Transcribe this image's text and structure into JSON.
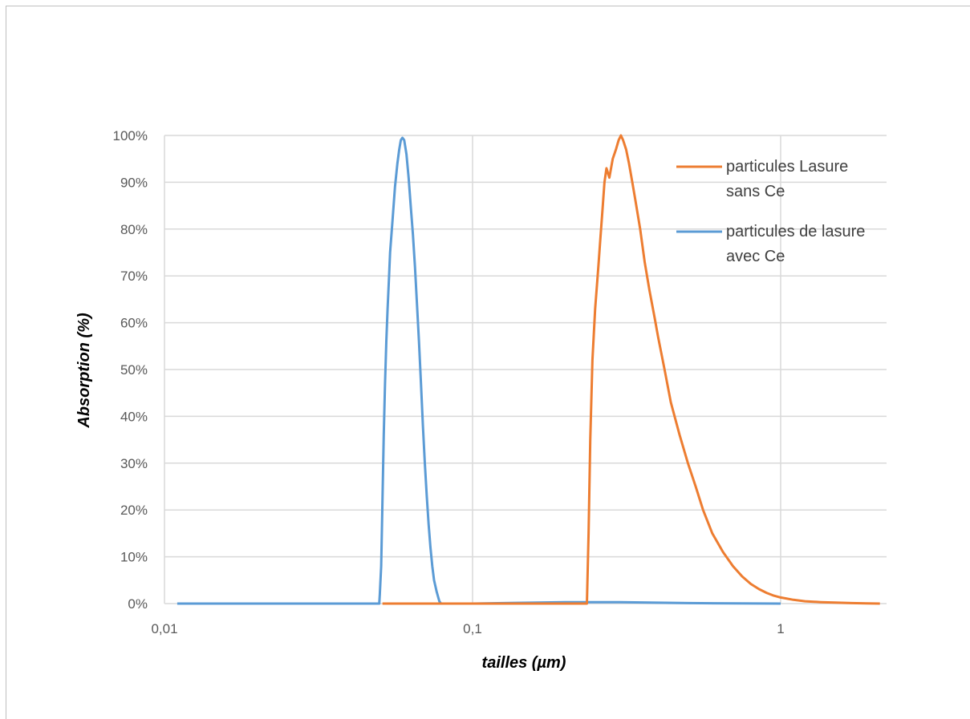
{
  "chart_data": {
    "type": "line",
    "title": "",
    "xlabel": "tailles (µm)",
    "ylabel": "Absorption (%)",
    "x_scale": "log",
    "xlim": [
      0.01,
      2.3
    ],
    "ylim": [
      0,
      100
    ],
    "grid": true,
    "legend_position": "top-right",
    "x_ticks": [
      {
        "value": 0.01,
        "label": "0,01"
      },
      {
        "value": 0.1,
        "label": "0,1"
      },
      {
        "value": 1,
        "label": "1"
      }
    ],
    "y_ticks": [
      {
        "value": 0,
        "label": "0%"
      },
      {
        "value": 10,
        "label": "10%"
      },
      {
        "value": 20,
        "label": "20%"
      },
      {
        "value": 30,
        "label": "30%"
      },
      {
        "value": 40,
        "label": "40%"
      },
      {
        "value": 50,
        "label": "50%"
      },
      {
        "value": 60,
        "label": "60%"
      },
      {
        "value": 70,
        "label": "70%"
      },
      {
        "value": 80,
        "label": "80%"
      },
      {
        "value": 90,
        "label": "90%"
      },
      {
        "value": 100,
        "label": "100%"
      }
    ],
    "series": [
      {
        "name": "particules Lasure sans Ce",
        "legend_lines": [
          "particules Lasure",
          "sans Ce"
        ],
        "color": "#ED7D31",
        "x": [
          0.051,
          0.1,
          0.2,
          0.235,
          0.2355,
          0.238,
          0.241,
          0.245,
          0.25,
          0.256,
          0.26,
          0.264,
          0.268,
          0.272,
          0.278,
          0.285,
          0.292,
          0.298,
          0.303,
          0.308,
          0.315,
          0.322,
          0.33,
          0.338,
          0.35,
          0.362,
          0.375,
          0.39,
          0.4,
          0.42,
          0.44,
          0.47,
          0.5,
          0.53,
          0.56,
          0.6,
          0.65,
          0.7,
          0.75,
          0.8,
          0.85,
          0.9,
          0.95,
          1.0,
          1.1,
          1.2,
          1.35,
          1.5,
          1.7,
          1.9,
          2.1
        ],
        "y": [
          0,
          0,
          0,
          0,
          2,
          15,
          35,
          52,
          63,
          72,
          78,
          84,
          90,
          93,
          91,
          95,
          97,
          99,
          100,
          99,
          97,
          94,
          90,
          86,
          80,
          73,
          67,
          61,
          57,
          50,
          43,
          36,
          30,
          25,
          20,
          15,
          11,
          8,
          5.8,
          4.2,
          3.1,
          2.3,
          1.7,
          1.3,
          0.8,
          0.5,
          0.3,
          0.2,
          0.1,
          0.05,
          0
        ]
      },
      {
        "name": "particules de lasure avec Ce",
        "legend_lines": [
          "particules de lasure",
          "avec Ce"
        ],
        "color": "#5B9BD5",
        "x": [
          0.011,
          0.02,
          0.04,
          0.0498,
          0.05,
          0.0505,
          0.051,
          0.0515,
          0.052,
          0.0525,
          0.053,
          0.0535,
          0.054,
          0.055,
          0.056,
          0.057,
          0.0578,
          0.0585,
          0.0592,
          0.06,
          0.061,
          0.062,
          0.063,
          0.064,
          0.065,
          0.066,
          0.067,
          0.068,
          0.069,
          0.07,
          0.071,
          0.072,
          0.073,
          0.074,
          0.075,
          0.0765,
          0.078,
          0.079,
          0.1,
          0.2,
          0.3,
          0.5,
          1.0
        ],
        "y": [
          0,
          0,
          0,
          0,
          2,
          8,
          22,
          36,
          47,
          56,
          63,
          69,
          75,
          82,
          89,
          94,
          97,
          99,
          99.5,
          99,
          96,
          91,
          85,
          79,
          72,
          64,
          56,
          47,
          38,
          30,
          23,
          17,
          12,
          8,
          5,
          2.5,
          0.5,
          0,
          0,
          0.3,
          0.3,
          0.1,
          0
        ]
      }
    ]
  }
}
